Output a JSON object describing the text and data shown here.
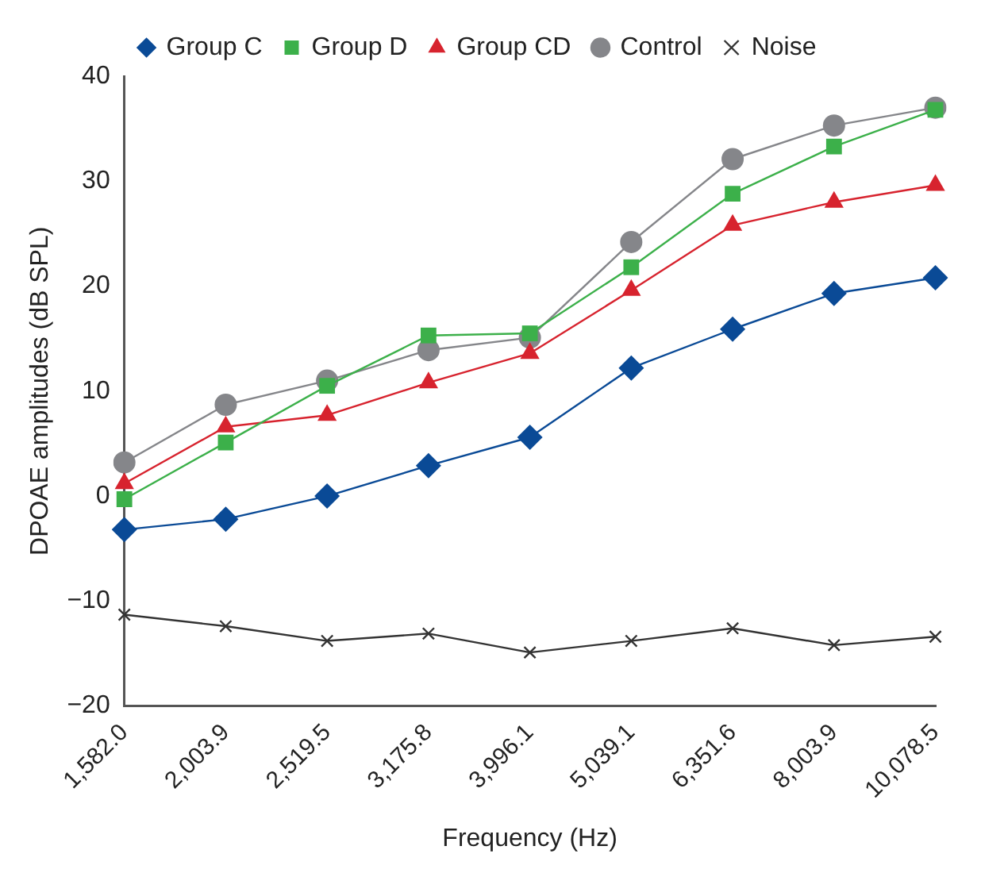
{
  "chart_data": {
    "type": "line",
    "xlabel": "Frequency (Hz)",
    "ylabel": "DPOAE amplitudes (dB SPL)",
    "categories": [
      "1,582.0",
      "2,003.9",
      "2,519.5",
      "3,175.8",
      "3,996.1",
      "5,039.1",
      "6,351.6",
      "8,003.9",
      "10,078.5"
    ],
    "series": [
      {
        "name": "Group C",
        "color": "#0a4a96",
        "marker": "diamond",
        "values": [
          -3.2,
          -2.2,
          0,
          2.9,
          5.6,
          12.2,
          15.9,
          19.3,
          20.8
        ]
      },
      {
        "name": "Group D",
        "color": "#3cb04a",
        "marker": "square",
        "values": [
          -0.3,
          5.1,
          10.5,
          15.3,
          15.5,
          21.8,
          28.8,
          33.3,
          36.8
        ]
      },
      {
        "name": "Group CD",
        "color": "#d7232e",
        "marker": "triangle",
        "values": [
          1.2,
          6.6,
          7.7,
          10.8,
          13.6,
          19.6,
          25.8,
          28.0,
          29.6
        ]
      },
      {
        "name": "Control",
        "color": "#85868a",
        "marker": "circle",
        "values": [
          3.2,
          8.7,
          11.0,
          13.9,
          15.1,
          24.2,
          32.1,
          35.3,
          37.0
        ]
      },
      {
        "name": "Noise",
        "color": "#333333",
        "marker": "cross",
        "values": [
          -11.3,
          -12.4,
          -13.8,
          -13.1,
          -14.9,
          -13.8,
          -12.6,
          -14.2,
          -13.4
        ]
      }
    ],
    "ylim": [
      -20,
      40
    ],
    "yticks": [
      -20,
      -10,
      0,
      10,
      20,
      30,
      40
    ],
    "grid": false,
    "legend": "top"
  }
}
